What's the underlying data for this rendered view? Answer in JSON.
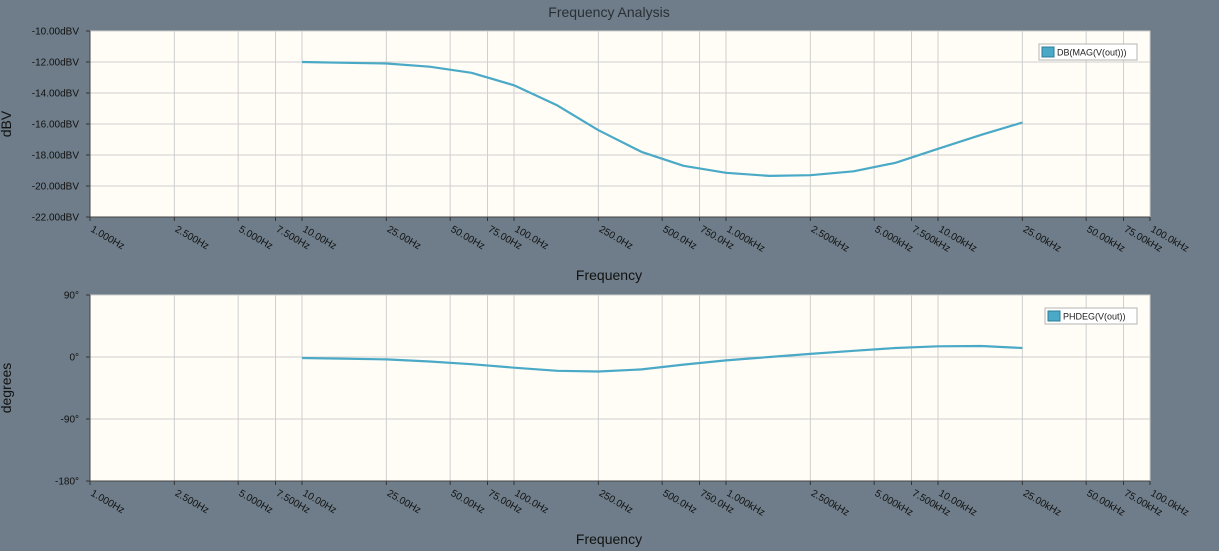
{
  "title": "Frequency Analysis",
  "colors": {
    "background": "#6e7d89",
    "plot_background": "#fffdf6",
    "grid": "#cfcfcf",
    "series": "#4aa9c6"
  },
  "x_tick_labels": [
    "1.000Hz",
    "2.500Hz",
    "5.000Hz",
    "7.500Hz",
    "10.00Hz",
    "25.00Hz",
    "50.00Hz",
    "75.00Hz",
    "100.0Hz",
    "250.0Hz",
    "500.0Hz",
    "750.0Hz",
    "1.000kHz",
    "2.500kHz",
    "5.000kHz",
    "7.500kHz",
    "10.00kHz",
    "25.00kHz",
    "50.00kHz",
    "75.00kHz",
    "100.0kHz"
  ],
  "chart_data": [
    {
      "type": "line",
      "xscale": "log",
      "xlim": [
        1,
        100000
      ],
      "ylim": [
        -22,
        -10
      ],
      "xlabel": "Frequency",
      "ylabel": "dBV",
      "x_ticks": [
        1,
        2.5,
        5,
        7.5,
        10,
        25,
        50,
        75,
        100,
        250,
        500,
        750,
        1000,
        2500,
        5000,
        7500,
        10000,
        25000,
        50000,
        75000,
        100000
      ],
      "y_ticks": [
        -10,
        -12,
        -14,
        -16,
        -18,
        -20,
        -22
      ],
      "y_tick_labels": [
        "-10.00dBV",
        "-12.00dBV",
        "-14.00dBV",
        "-16.00dBV",
        "-18.00dBV",
        "-20.00dBV",
        "-22.00dBV"
      ],
      "grid": true,
      "legend_position": "top-right",
      "series": [
        {
          "name": "DB(MAG(V(out)))",
          "x": [
            10,
            25,
            40,
            63,
            100,
            160,
            250,
            400,
            630,
            1000,
            1600,
            2500,
            4000,
            6300,
            10000,
            16000,
            25000
          ],
          "y": [
            -12.0,
            -12.1,
            -12.3,
            -12.7,
            -13.5,
            -14.8,
            -16.4,
            -17.8,
            -18.7,
            -19.15,
            -19.35,
            -19.3,
            -19.05,
            -18.5,
            -17.6,
            -16.7,
            -15.9
          ]
        }
      ]
    },
    {
      "type": "line",
      "xscale": "log",
      "xlim": [
        1,
        100000
      ],
      "ylim": [
        -180,
        90
      ],
      "xlabel": "Frequency",
      "ylabel": "degrees",
      "x_ticks": [
        1,
        2.5,
        5,
        7.5,
        10,
        25,
        50,
        75,
        100,
        250,
        500,
        750,
        1000,
        2500,
        5000,
        7500,
        10000,
        25000,
        50000,
        75000,
        100000
      ],
      "y_ticks": [
        90,
        0,
        -90,
        -180
      ],
      "y_tick_labels": [
        "90°",
        "0°",
        "-90°",
        "-180°"
      ],
      "grid": true,
      "legend_position": "top-right",
      "series": [
        {
          "name": "PHDEG(V(out))",
          "x": [
            10,
            25,
            40,
            63,
            100,
            160,
            250,
            400,
            630,
            1000,
            1600,
            2500,
            4000,
            6300,
            10000,
            16000,
            25000
          ],
          "y": [
            -1.5,
            -3.5,
            -6.5,
            -10.5,
            -15.5,
            -20,
            -21,
            -18,
            -11,
            -5,
            0,
            4.5,
            9,
            13,
            15.5,
            16,
            13
          ]
        }
      ]
    }
  ]
}
